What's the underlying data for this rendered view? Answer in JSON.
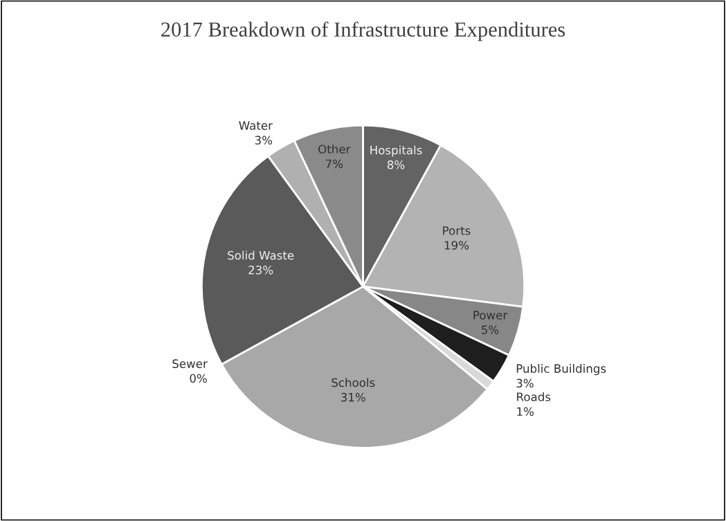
{
  "chart_data": {
    "type": "pie",
    "title": "2017 Breakdown of Infrastructure Expenditures",
    "categories": [
      "Hospitals",
      "Ports",
      "Power",
      "Public Buildings",
      "Roads",
      "Schools",
      "Sewer",
      "Solid Waste",
      "Water",
      "Other"
    ],
    "values": [
      8,
      19,
      5,
      3,
      1,
      31,
      0,
      23,
      3,
      7
    ],
    "colors": [
      "#636363",
      "#b3b3b3",
      "#878787",
      "#1e1e1e",
      "#d9d9d9",
      "#a8a8a8",
      "#e0e0e0",
      "#5a5a5a",
      "#b0b0b0",
      "#8a8a8a"
    ],
    "value_labels": [
      "8%",
      "19%",
      "5%",
      "3%",
      "1%",
      "31%",
      "0%",
      "23%",
      "3%",
      "7%"
    ],
    "legend": false
  }
}
